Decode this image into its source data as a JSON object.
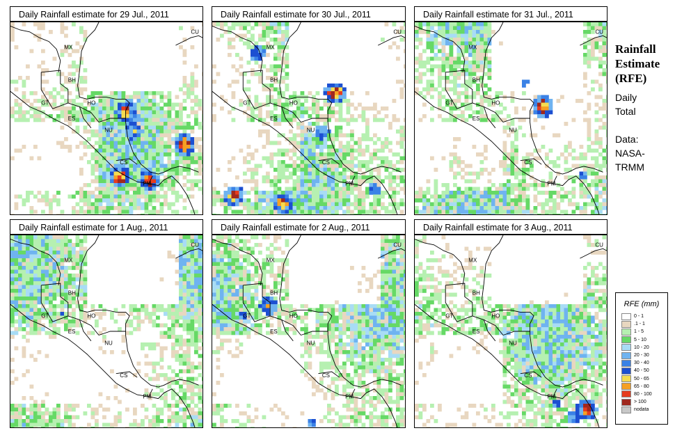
{
  "panels": [
    {
      "title": "Daily Rainfall estimate for  29 Jul., 2011",
      "seed": 29,
      "hotspots": [
        [
          0.58,
          0.45,
          0.9
        ],
        [
          0.88,
          0.62,
          1.0
        ],
        [
          0.55,
          0.78,
          1.0
        ],
        [
          0.7,
          0.8,
          0.9
        ],
        [
          0.62,
          0.55,
          0.7
        ]
      ]
    },
    {
      "title": "Daily Rainfall estimate for  30 Jul., 2011",
      "seed": 30,
      "hotspots": [
        [
          0.62,
          0.35,
          1.0
        ],
        [
          0.55,
          0.55,
          0.6
        ],
        [
          0.1,
          0.88,
          0.9
        ],
        [
          0.35,
          0.92,
          0.9
        ],
        [
          0.22,
          0.15,
          0.6
        ],
        [
          0.82,
          0.85,
          0.5
        ]
      ]
    },
    {
      "title": "Daily Rainfall estimate for  31 Jul., 2011",
      "seed": 31,
      "hotspots": [
        [
          0.65,
          0.42,
          1.0
        ],
        [
          0.55,
          0.3,
          0.4
        ],
        [
          0.85,
          0.78,
          0.4
        ]
      ]
    },
    {
      "title": "Daily Rainfall estimate for  1 Aug., 2011",
      "seed": 1,
      "hotspots": [
        [
          0.25,
          0.4,
          0.35
        ],
        [
          0.3,
          0.65,
          0.3
        ]
      ]
    },
    {
      "title": "Daily Rainfall estimate for  2 Aug., 2011",
      "seed": 2,
      "hotspots": [
        [
          0.28,
          0.35,
          0.7
        ],
        [
          0.15,
          0.4,
          0.4
        ],
        [
          0.5,
          0.95,
          0.4
        ]
      ]
    },
    {
      "title": "Daily Rainfall estimate for  3 Aug., 2011",
      "seed": 3,
      "hotspots": [
        [
          0.87,
          0.88,
          0.9
        ],
        [
          0.72,
          0.85,
          0.4
        ],
        [
          0.8,
          0.92,
          0.5
        ]
      ]
    }
  ],
  "country_labels": [
    "MX",
    "BH",
    "GT",
    "HO",
    "ES",
    "NU",
    "CS",
    "PM",
    "CU"
  ],
  "side": {
    "title_line1": "Rainfall",
    "title_line2": "Estimate",
    "title_line3": "(RFE)",
    "daily": "Daily",
    "total": "Total",
    "data_label": "Data:",
    "source1": "NASA-",
    "source2": "TRMM"
  },
  "legend": {
    "title": "RFE (mm)",
    "items": [
      {
        "label": "0 - 1",
        "color": "#ffffff"
      },
      {
        "label": ".1 - 1",
        "color": "#e8d7c0"
      },
      {
        "label": "1 - 5",
        "color": "#b6f0b1"
      },
      {
        "label": "5 - 10",
        "color": "#66d966"
      },
      {
        "label": "10 - 20",
        "color": "#a8dcf5"
      },
      {
        "label": "20 - 30",
        "color": "#6fb3f0"
      },
      {
        "label": "30 - 40",
        "color": "#3b82e6"
      },
      {
        "label": "40 - 50",
        "color": "#1c4fd1"
      },
      {
        "label": "50 - 65",
        "color": "#f5dc50"
      },
      {
        "label": "65 - 80",
        "color": "#f5a023"
      },
      {
        "label": "80 - 100",
        "color": "#e63c1e"
      },
      {
        "label": "> 100",
        "color": "#a0281e"
      },
      {
        "label": "nodata",
        "color": "#c8c8c8"
      }
    ]
  }
}
